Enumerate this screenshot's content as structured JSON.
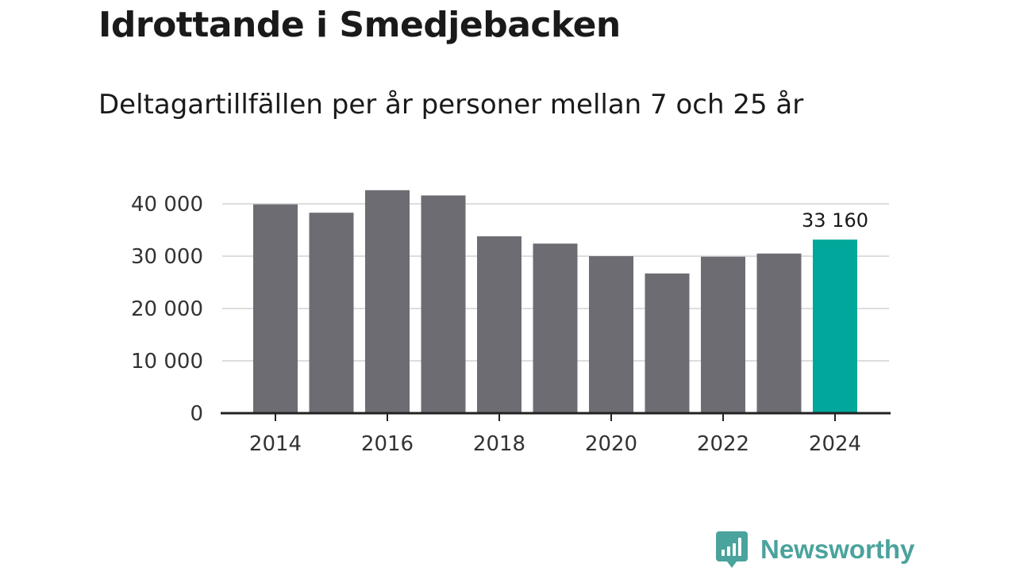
{
  "header": {
    "title": "Idrottande i Smedjebacken",
    "subtitle": "Deltagartillfällen per år personer mellan 7 och 25 år"
  },
  "brand": {
    "name": "Newsworthy",
    "color": "#4aa39c",
    "icon": "newsworthy-logo-icon"
  },
  "chart_data": {
    "type": "bar",
    "title": "Idrottande i Smedjebacken",
    "subtitle": "Deltagartillfällen per år personer mellan 7 och 25 år",
    "xlabel": "",
    "ylabel": "",
    "categories": [
      "2014",
      "2015",
      "2016",
      "2017",
      "2018",
      "2019",
      "2020",
      "2021",
      "2022",
      "2023",
      "2024"
    ],
    "values": [
      39900,
      38300,
      42600,
      41600,
      33800,
      32400,
      30000,
      26700,
      29900,
      30500,
      33160
    ],
    "ylim": [
      0,
      40000
    ],
    "yticks": [
      0,
      10000,
      20000,
      30000,
      40000
    ],
    "ytick_labels": [
      "0",
      "10 000",
      "20 000",
      "30 000",
      "40 000"
    ],
    "xtick_labels": [
      "2014",
      "2016",
      "2018",
      "2020",
      "2022",
      "2024"
    ],
    "highlight_index": 10,
    "highlight_label": "33 160",
    "grid": true,
    "colors": {
      "bar": "#6e6c73",
      "highlight": "#00a79a",
      "grid": "#dddddd",
      "axis": "#222222"
    }
  }
}
